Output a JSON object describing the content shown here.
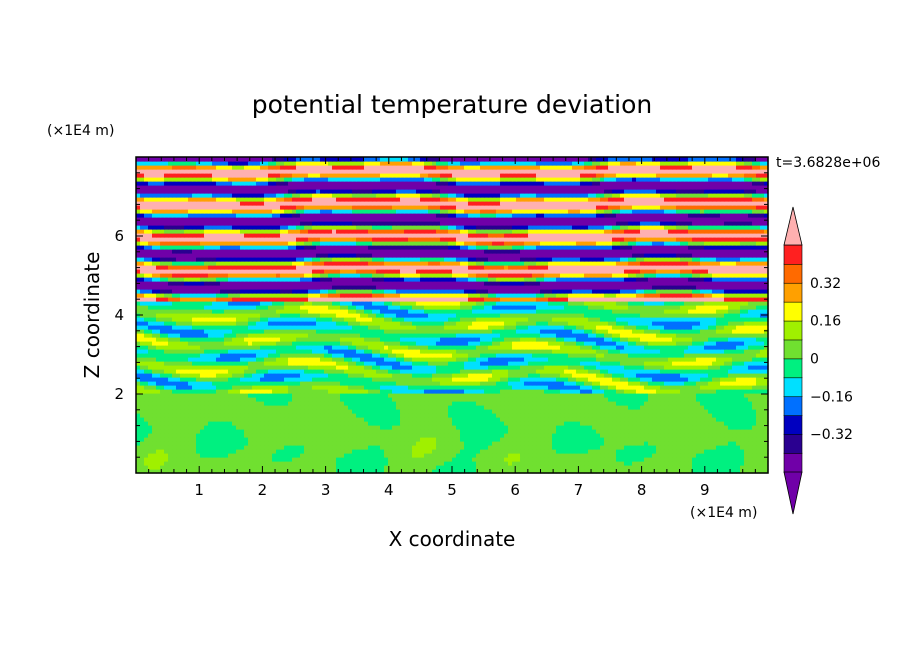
{
  "chart_data": {
    "type": "heatmap",
    "title": "potential temperature deviation",
    "time_label": "t=3.6828e+06",
    "xlabel": "X coordinate",
    "ylabel": "Z coordinate",
    "x_unit": "(×1E4 m)",
    "y_unit": "(×1E4 m)",
    "x_ticks": [
      1,
      2,
      3,
      4,
      5,
      6,
      7,
      8,
      9
    ],
    "y_ticks": [
      2,
      4,
      6
    ],
    "xlim": [
      0,
      10
    ],
    "ylim": [
      0,
      8
    ],
    "colorbar": {
      "levels": [
        -0.48,
        -0.4,
        -0.32,
        -0.24,
        -0.16,
        -0.08,
        0,
        0.08,
        0.16,
        0.24,
        0.32,
        0.4,
        0.48
      ],
      "tick_values": [
        0.32,
        0.16,
        0,
        -0.16,
        -0.32
      ],
      "tick_labels": [
        "0.32",
        "0.16",
        "0",
        "−0.16",
        "−0.32"
      ],
      "colors": [
        "#ffb0b0",
        "#ff2020",
        "#ff6a00",
        "#ffa000",
        "#ffff00",
        "#a0f000",
        "#70e030",
        "#00f080",
        "#00e0ff",
        "#0070ff",
        "#0000c0",
        "#2a0090",
        "#7000a8"
      ],
      "extend": "both"
    }
  }
}
